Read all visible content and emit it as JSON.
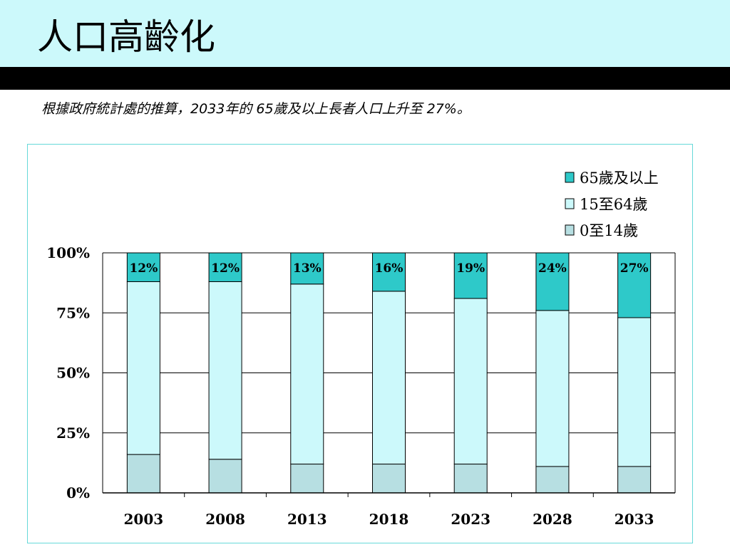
{
  "slide": {
    "title": "人口高齡化",
    "subtitle": "根據政府統計處的推算，2033年的 65歲及以上長者人口上升至 27%。"
  },
  "colors": {
    "title_band": "#ccf9fb",
    "black_band": "#000000",
    "series_65_plus": "#2ec9c9",
    "series_15_64": "#ccf9fb",
    "series_0_14": "#b7dfe2",
    "frame_border": "#66d9d9"
  },
  "chart_data": {
    "type": "bar",
    "stacked": true,
    "categories": [
      "2003",
      "2008",
      "2013",
      "2018",
      "2023",
      "2028",
      "2033"
    ],
    "series": [
      {
        "name": "0至14歲",
        "values": [
          16,
          14,
          12,
          12,
          12,
          11,
          11
        ],
        "color": "#b7dfe2"
      },
      {
        "name": "15至64歲",
        "values": [
          72,
          74,
          75,
          72,
          69,
          65,
          62
        ],
        "color": "#ccf9fb"
      },
      {
        "name": "65歲及以上",
        "values": [
          12,
          12,
          13,
          16,
          19,
          24,
          27
        ],
        "color": "#2ec9c9"
      }
    ],
    "data_labels": {
      "series": "65歲及以上",
      "labels": [
        "12%",
        "12%",
        "13%",
        "16%",
        "19%",
        "24%",
        "27%"
      ]
    },
    "y_ticks": [
      {
        "value": 0,
        "label": "0%"
      },
      {
        "value": 25,
        "label": "25%"
      },
      {
        "value": 50,
        "label": "50%"
      },
      {
        "value": 75,
        "label": "75%"
      },
      {
        "value": 100,
        "label": "100%"
      }
    ],
    "ylim": [
      0,
      100
    ],
    "grid": true,
    "legend_position": "top-right",
    "legend_order": [
      "65歲及以上",
      "15至64歲",
      "0至14歲"
    ]
  }
}
